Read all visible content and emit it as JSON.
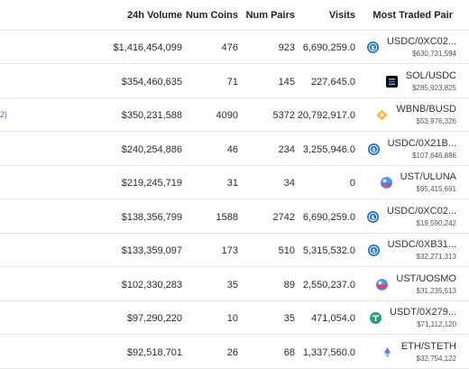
{
  "headers": {
    "volume": "24h Volume",
    "coins": "Num Coins",
    "pairs": "Num Pairs",
    "visits": "Visits",
    "pair": "Most Traded Pair"
  },
  "rows": [
    {
      "volume": "$1,416,454,099",
      "coins": "476",
      "pairs": "923",
      "visits": "6,690,259.0",
      "pair": "USDC/0XC02...",
      "pair_volume": "$630,731,594",
      "icon": "usdc-icon"
    },
    {
      "volume": "$354,460,635",
      "coins": "71",
      "pairs": "145",
      "visits": "227,645.0",
      "pair": "SOL/USDC",
      "pair_volume": "$285,923,825",
      "icon": "sol-icon"
    },
    {
      "volume": "$350,231,588",
      "coins": "4090",
      "pairs": "5372",
      "visits": "20,792,917.0",
      "pair": "WBNB/BUSD",
      "pair_volume": "$53,976,326",
      "icon": "bnb-icon",
      "left_mark": "2)"
    },
    {
      "volume": "$240,254,886",
      "coins": "46",
      "pairs": "234",
      "visits": "3,255,946.0",
      "pair": "USDC/0X21B...",
      "pair_volume": "$107,646,886",
      "icon": "usdc-icon"
    },
    {
      "volume": "$219,245,719",
      "coins": "31",
      "pairs": "34",
      "visits": "0",
      "pair": "UST/ULUNA",
      "pair_volume": "$95,415,691",
      "icon": "ust-icon"
    },
    {
      "volume": "$138,356,799",
      "coins": "1588",
      "pairs": "2742",
      "visits": "6,690,259.0",
      "pair": "USDC/0XC02...",
      "pair_volume": "$19,590,242",
      "icon": "usdc-icon"
    },
    {
      "volume": "$133,359,097",
      "coins": "173",
      "pairs": "510",
      "visits": "5,315,532.0",
      "pair": "USDC/0XB31...",
      "pair_volume": "$32,271,313",
      "icon": "usdc-icon"
    },
    {
      "volume": "$102,330,283",
      "coins": "35",
      "pairs": "89",
      "visits": "2,550,237.0",
      "pair": "UST/UOSMO",
      "pair_volume": "$31,235,513",
      "icon": "ust-icon"
    },
    {
      "volume": "$97,290,220",
      "coins": "10",
      "pairs": "35",
      "visits": "471,054.0",
      "pair": "USDT/0X279...",
      "pair_volume": "$71,112,120",
      "icon": "usdt-icon"
    },
    {
      "volume": "$92,518,701",
      "coins": "26",
      "pairs": "68",
      "visits": "1,337,560.0",
      "pair": "ETH/STETH",
      "pair_volume": "$32,754,122",
      "icon": "eth-icon"
    }
  ],
  "colors": {
    "usdc": "#2775ca",
    "sol": "#000000",
    "bnb": "#f3ba2f",
    "ust": "#5493f7",
    "usdt": "#26a17b",
    "eth": "#627eea",
    "link": "#3a7bd5"
  }
}
